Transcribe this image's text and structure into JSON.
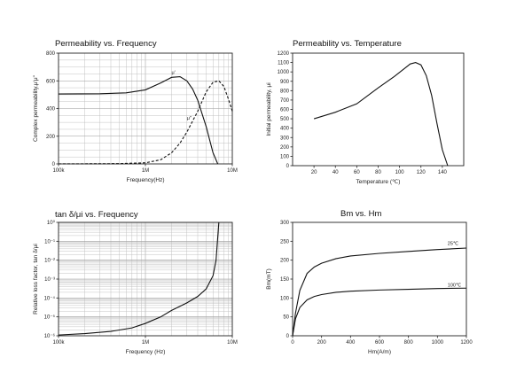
{
  "chart_data": [
    {
      "type": "line",
      "title": "Permeability vs. Frequency",
      "xlabel": "Frequency(Hz)",
      "ylabel": "Complex permeability,μ'μ\"",
      "xscale": "log",
      "xlim": [
        100000,
        10000000
      ],
      "ylim": [
        0,
        800
      ],
      "x_ticks": [
        100000,
        1000000,
        10000000
      ],
      "x_tick_labels": [
        "100k",
        "1M",
        "10M"
      ],
      "y_ticks": [
        0,
        200,
        400,
        600,
        800
      ],
      "y_tick_labels": [
        "0",
        "200",
        "400",
        "600",
        "800"
      ],
      "grid": true,
      "series": [
        {
          "name": "μ'",
          "style": "solid",
          "x": [
            100000,
            300000,
            600000,
            1000000,
            1500000,
            2000000,
            2500000,
            3000000,
            3500000,
            4000000,
            5000000,
            6000000,
            6800000
          ],
          "y": [
            505,
            507,
            513,
            535,
            585,
            625,
            630,
            600,
            540,
            460,
            270,
            80,
            0
          ]
        },
        {
          "name": "μ\"",
          "style": "dashed",
          "x": [
            100000,
            500000,
            1000000,
            1500000,
            2000000,
            2500000,
            3000000,
            4000000,
            5000000,
            6000000,
            7000000,
            8000000,
            9000000,
            10000000
          ],
          "y": [
            0,
            2,
            8,
            30,
            80,
            150,
            230,
            380,
            520,
            590,
            600,
            560,
            470,
            380
          ]
        }
      ],
      "annotations": [
        {
          "text": "μ'",
          "x": 2000000,
          "y": 650
        },
        {
          "text": "μ\"",
          "x": 3000000,
          "y": 320
        }
      ]
    },
    {
      "type": "line",
      "title": "Permeability vs. Temperature",
      "xlabel": "Temperature (℃)",
      "ylabel": "Initial permeability, μi",
      "xlim": [
        0,
        160
      ],
      "ylim": [
        0,
        1200
      ],
      "x_ticks": [
        20,
        40,
        60,
        80,
        100,
        120,
        140
      ],
      "y_ticks": [
        0,
        100,
        200,
        300,
        400,
        500,
        600,
        700,
        800,
        900,
        1000,
        1100,
        1200
      ],
      "grid": false,
      "series": [
        {
          "style": "solid",
          "x": [
            20,
            40,
            60,
            80,
            95,
            105,
            110,
            115,
            120,
            125,
            130,
            135,
            140,
            145
          ],
          "y": [
            500,
            570,
            660,
            830,
            950,
            1040,
            1085,
            1100,
            1075,
            960,
            750,
            450,
            170,
            0
          ]
        }
      ]
    },
    {
      "type": "line",
      "title": "tan δ/μi vs. Frequency",
      "xlabel": "Frequency (Hz)",
      "ylabel": "Relative loss factor,  tan δ/μi",
      "xscale": "log",
      "yscale": "log",
      "xlim": [
        100000,
        10000000
      ],
      "ylim": [
        1e-06,
        1
      ],
      "x_ticks": [
        100000,
        1000000,
        10000000
      ],
      "x_tick_labels": [
        "100k",
        "1M",
        "10M"
      ],
      "y_ticks": [
        1e-06,
        1e-05,
        0.0001,
        0.001,
        0.01,
        0.1,
        1
      ],
      "y_tick_labels": [
        "10⁻⁶",
        "10⁻⁵",
        "10⁻⁴",
        "10⁻³",
        "10⁻²",
        "10⁻¹",
        "10⁰"
      ],
      "grid": true,
      "series": [
        {
          "style": "solid",
          "x": [
            100000,
            200000,
            400000,
            700000,
            1000000,
            1500000,
            2000000,
            3000000,
            4000000,
            5000000,
            6000000,
            6500000,
            7000000
          ],
          "y": [
            1.1e-06,
            1.3e-06,
            1.7e-06,
            2.6e-06,
            4.5e-06,
            1e-05,
            2.2e-05,
            5.5e-05,
            0.00012,
            0.0003,
            0.0015,
            0.01,
            1
          ]
        }
      ]
    },
    {
      "type": "line",
      "title": "Bm vs. Hm",
      "xlabel": "Hm(A/m)",
      "ylabel": "Bm(mT)",
      "xlim": [
        0,
        1200
      ],
      "ylim": [
        0,
        300
      ],
      "x_ticks": [
        0,
        200,
        400,
        600,
        800,
        1000,
        1200
      ],
      "y_ticks": [
        0,
        50,
        100,
        150,
        200,
        250,
        300
      ],
      "grid": false,
      "series": [
        {
          "name": "25℃",
          "style": "solid",
          "x": [
            0,
            20,
            50,
            100,
            150,
            200,
            300,
            400,
            600,
            800,
            1000,
            1200
          ],
          "y": [
            0,
            60,
            120,
            165,
            182,
            192,
            204,
            211,
            218,
            223,
            228,
            232
          ]
        },
        {
          "name": "100℃",
          "style": "solid",
          "x": [
            0,
            20,
            50,
            100,
            150,
            200,
            300,
            400,
            600,
            800,
            1000,
            1200
          ],
          "y": [
            0,
            45,
            75,
            95,
            104,
            109,
            115,
            118,
            121,
            123,
            125,
            126
          ]
        }
      ],
      "annotations": [
        {
          "text": "25℃",
          "x": 1070,
          "y": 240
        },
        {
          "text": "100℃",
          "x": 1070,
          "y": 130
        }
      ]
    }
  ]
}
